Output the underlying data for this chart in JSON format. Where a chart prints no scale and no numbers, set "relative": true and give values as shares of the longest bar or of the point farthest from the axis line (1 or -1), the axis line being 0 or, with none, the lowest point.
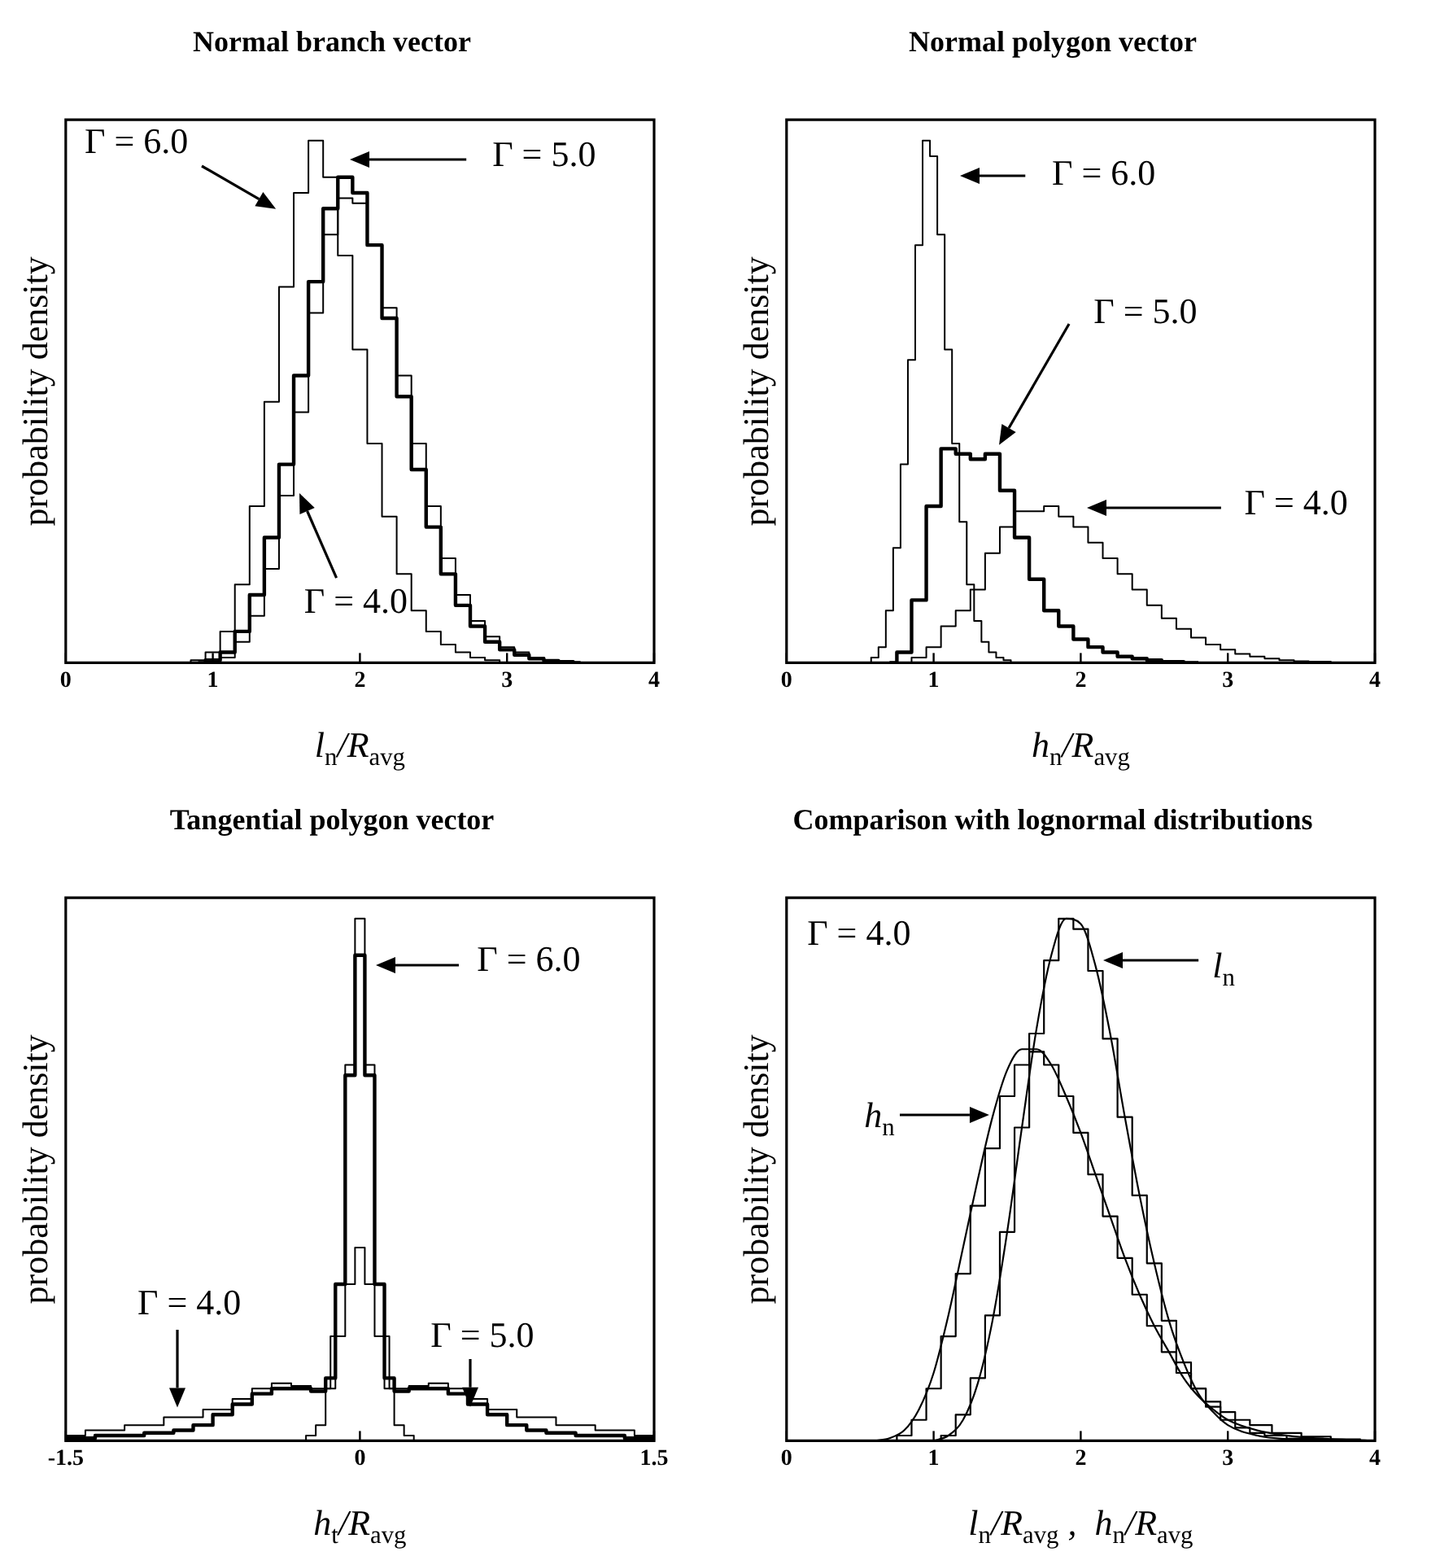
{
  "chart_data": [
    {
      "type": "step",
      "title": "Normal branch vector",
      "xlabel": "l$_{n}$/R$_{avg}$",
      "ylabel": "probability density",
      "relative": true,
      "xlim": [
        0,
        4
      ],
      "xticks": [
        0,
        1,
        2,
        3,
        4
      ],
      "legend": false,
      "grid": false,
      "series": [
        {
          "color": "#000000",
          "x": [
            0.8,
            0.9,
            1.0,
            1.1,
            1.2,
            1.3,
            1.4,
            1.5,
            1.6,
            1.7,
            1.8,
            1.9,
            2.0,
            2.1,
            2.2,
            2.3,
            2.4,
            2.5,
            2.6,
            2.7,
            2.8,
            2.9,
            3.0
          ],
          "values": [
            0,
            0.005,
            0.02,
            0.06,
            0.15,
            0.3,
            0.5,
            0.72,
            0.9,
            1.0,
            0.93,
            0.78,
            0.6,
            0.42,
            0.28,
            0.17,
            0.1,
            0.06,
            0.035,
            0.02,
            0.01,
            0.005,
            0
          ]
        },
        {
          "color": "#000000",
          "x": [
            0.9,
            1.0,
            1.1,
            1.2,
            1.3,
            1.4,
            1.5,
            1.6,
            1.7,
            1.8,
            1.9,
            2.0,
            2.1,
            2.2,
            2.3,
            2.4,
            2.5,
            2.6,
            2.7,
            2.8,
            2.9,
            3.0,
            3.1,
            3.2,
            3.3,
            3.4,
            3.5
          ],
          "values": [
            0,
            0.005,
            0.02,
            0.06,
            0.13,
            0.24,
            0.38,
            0.55,
            0.73,
            0.87,
            0.93,
            0.9,
            0.8,
            0.66,
            0.51,
            0.37,
            0.26,
            0.17,
            0.11,
            0.07,
            0.04,
            0.025,
            0.015,
            0.008,
            0.004,
            0.002,
            0
          ]
        },
        {
          "color": "#000000",
          "x": [
            1.0,
            1.1,
            1.2,
            1.3,
            1.4,
            1.5,
            1.6,
            1.7,
            1.8,
            1.9,
            2.0,
            2.1,
            2.2,
            2.3,
            2.4,
            2.5,
            2.6,
            2.7,
            2.8,
            2.9,
            3.0,
            3.1,
            3.2,
            3.3,
            3.4
          ],
          "values": [
            0,
            0.01,
            0.04,
            0.09,
            0.18,
            0.32,
            0.48,
            0.67,
            0.82,
            0.89,
            0.88,
            0.8,
            0.68,
            0.55,
            0.42,
            0.3,
            0.2,
            0.13,
            0.08,
            0.05,
            0.03,
            0.02,
            0.01,
            0.005,
            0
          ]
        }
      ],
      "annotations": [
        "Γ = 6.0",
        "Γ = 5.0",
        "Γ = 4.0"
      ]
    },
    {
      "type": "step",
      "title": "Normal polygon vector",
      "xlabel": "h$_{n}$/R$_{avg}$",
      "ylabel": "probability density",
      "relative": true,
      "xlim": [
        0,
        4
      ],
      "xticks": [
        0,
        1,
        2,
        3,
        4
      ],
      "legend": false,
      "grid": false,
      "series": [
        {
          "color": "#000000",
          "x": [
            0.55,
            0.6,
            0.65,
            0.7,
            0.75,
            0.8,
            0.85,
            0.9,
            0.95,
            1.0,
            1.05,
            1.1,
            1.15,
            1.2,
            1.25,
            1.3,
            1.35,
            1.4,
            1.45,
            1.5,
            1.55
          ],
          "values": [
            0,
            0.01,
            0.03,
            0.1,
            0.22,
            0.38,
            0.58,
            0.8,
            1.0,
            0.97,
            0.82,
            0.6,
            0.42,
            0.27,
            0.15,
            0.08,
            0.04,
            0.02,
            0.01,
            0.005,
            0
          ]
        },
        {
          "color": "#000000",
          "x": [
            0.7,
            0.8,
            0.9,
            1.0,
            1.1,
            1.2,
            1.3,
            1.4,
            1.5,
            1.6,
            1.7,
            1.8,
            1.9,
            2.0,
            2.1,
            2.2,
            2.3,
            2.4,
            2.5,
            2.6,
            2.8
          ],
          "values": [
            0,
            0.02,
            0.12,
            0.3,
            0.41,
            0.4,
            0.39,
            0.4,
            0.33,
            0.24,
            0.16,
            0.1,
            0.07,
            0.045,
            0.03,
            0.02,
            0.012,
            0.008,
            0.005,
            0.002,
            0
          ]
        },
        {
          "color": "#000000",
          "x": [
            0.8,
            0.9,
            1.0,
            1.1,
            1.2,
            1.3,
            1.4,
            1.5,
            1.6,
            1.7,
            1.8,
            1.9,
            2.0,
            2.1,
            2.2,
            2.3,
            2.4,
            2.5,
            2.6,
            2.7,
            2.8,
            2.9,
            3.0,
            3.1,
            3.2,
            3.3,
            3.4,
            3.5,
            3.6,
            3.8
          ],
          "values": [
            0,
            0.01,
            0.03,
            0.07,
            0.1,
            0.14,
            0.21,
            0.26,
            0.29,
            0.29,
            0.3,
            0.28,
            0.26,
            0.23,
            0.2,
            0.17,
            0.14,
            0.11,
            0.085,
            0.065,
            0.048,
            0.035,
            0.025,
            0.017,
            0.012,
            0.008,
            0.005,
            0.003,
            0.002,
            0
          ]
        }
      ],
      "annotations": [
        "Γ = 6.0",
        "Γ = 5.0",
        "Γ = 4.0"
      ]
    },
    {
      "type": "step",
      "title": "Tangential polygon vector",
      "xlabel": "h$_{t}$/R$_{avg}$",
      "ylabel": "probability density",
      "relative": true,
      "xlim": [
        -1.5,
        1.5
      ],
      "xticks": [
        -1.5,
        0,
        1.5
      ],
      "legend": false,
      "grid": false,
      "series": [
        {
          "color": "#000000",
          "x": [
            -0.3,
            -0.25,
            -0.2,
            -0.15,
            -0.1,
            -0.05,
            0,
            0.05,
            0.1,
            0.15,
            0.2,
            0.25,
            0.3
          ],
          "values": [
            0,
            0.01,
            0.03,
            0.1,
            0.3,
            0.72,
            1.0,
            0.72,
            0.3,
            0.1,
            0.03,
            0.01,
            0
          ]
        },
        {
          "color": "#000000",
          "x": [
            -1.5,
            -1.2,
            -1.0,
            -0.9,
            -0.8,
            -0.7,
            -0.6,
            -0.5,
            -0.4,
            -0.3,
            -0.2,
            -0.15,
            -0.1,
            -0.05,
            0,
            0.05,
            0.1,
            0.15,
            0.2,
            0.3,
            0.4,
            0.5,
            0.6,
            0.7,
            0.8,
            0.9,
            1.0,
            1.2,
            1.5
          ],
          "values": [
            0.005,
            0.01,
            0.015,
            0.02,
            0.03,
            0.05,
            0.07,
            0.09,
            0.1,
            0.1,
            0.095,
            0.12,
            0.3,
            0.7,
            0.93,
            0.7,
            0.3,
            0.12,
            0.095,
            0.1,
            0.1,
            0.09,
            0.07,
            0.05,
            0.03,
            0.02,
            0.015,
            0.01,
            0.005
          ]
        },
        {
          "color": "#000000",
          "x": [
            -1.5,
            -1.3,
            -1.1,
            -0.9,
            -0.7,
            -0.6,
            -0.5,
            -0.4,
            -0.3,
            -0.2,
            -0.1,
            -0.05,
            0,
            0.05,
            0.1,
            0.2,
            0.3,
            0.4,
            0.5,
            0.6,
            0.7,
            0.9,
            1.1,
            1.3,
            1.5
          ],
          "values": [
            0.01,
            0.02,
            0.03,
            0.045,
            0.06,
            0.08,
            0.1,
            0.11,
            0.105,
            0.1,
            0.2,
            0.3,
            0.37,
            0.3,
            0.2,
            0.1,
            0.105,
            0.11,
            0.1,
            0.08,
            0.06,
            0.045,
            0.03,
            0.02,
            0.01
          ]
        }
      ],
      "annotations": [
        "Γ = 6.0",
        "Γ = 4.0",
        "Γ = 5.0"
      ]
    },
    {
      "type": "step",
      "title": "Comparison with lognormal distributions",
      "xlabel": "l$_{n}$/R$_{avg}$ ,  h$_{n}$/R$_{avg}$",
      "ylabel": "probability density",
      "relative": true,
      "xlim": [
        0,
        4
      ],
      "xticks": [
        0,
        1,
        2,
        3,
        4
      ],
      "legend": false,
      "grid": false,
      "series": [
        {
          "type": "step",
          "color": "#000000",
          "x": [
            1.0,
            1.1,
            1.2,
            1.3,
            1.4,
            1.5,
            1.6,
            1.7,
            1.8,
            1.9,
            2.0,
            2.1,
            2.2,
            2.3,
            2.4,
            2.5,
            2.6,
            2.7,
            2.8,
            2.9,
            3.0,
            3.1,
            3.2,
            3.3,
            3.5,
            3.8
          ],
          "values": [
            0,
            0.01,
            0.05,
            0.12,
            0.24,
            0.4,
            0.6,
            0.78,
            0.92,
            1.0,
            0.98,
            0.9,
            0.77,
            0.62,
            0.47,
            0.34,
            0.23,
            0.15,
            0.1,
            0.065,
            0.04,
            0.025,
            0.015,
            0.01,
            0.004,
            0
          ]
        },
        {
          "type": "line",
          "color": "#000000",
          "x": [
            1.0,
            1.1,
            1.2,
            1.3,
            1.4,
            1.5,
            1.6,
            1.7,
            1.8,
            1.9,
            2.0,
            2.1,
            2.2,
            2.3,
            2.4,
            2.5,
            2.6,
            2.7,
            2.8,
            2.9,
            3.0,
            3.2,
            3.5,
            4.0
          ],
          "values": [
            0,
            0.01,
            0.04,
            0.11,
            0.23,
            0.4,
            0.6,
            0.79,
            0.93,
            1.0,
            0.99,
            0.91,
            0.78,
            0.62,
            0.47,
            0.34,
            0.23,
            0.15,
            0.09,
            0.055,
            0.03,
            0.01,
            0.002,
            0
          ]
        },
        {
          "type": "step",
          "color": "#000000",
          "x": [
            0.7,
            0.8,
            0.9,
            1.0,
            1.1,
            1.2,
            1.3,
            1.4,
            1.5,
            1.6,
            1.7,
            1.8,
            1.9,
            2.0,
            2.1,
            2.2,
            2.3,
            2.4,
            2.5,
            2.6,
            2.7,
            2.8,
            2.9,
            3.0,
            3.1,
            3.2,
            3.4,
            3.6,
            3.8,
            4.0
          ],
          "values": [
            0,
            0.01,
            0.04,
            0.1,
            0.2,
            0.32,
            0.45,
            0.56,
            0.66,
            0.72,
            0.745,
            0.72,
            0.66,
            0.59,
            0.51,
            0.43,
            0.35,
            0.28,
            0.22,
            0.17,
            0.13,
            0.1,
            0.075,
            0.055,
            0.04,
            0.03,
            0.015,
            0.008,
            0.003,
            0
          ]
        },
        {
          "type": "line",
          "color": "#000000",
          "x": [
            0.6,
            0.7,
            0.8,
            0.9,
            1.0,
            1.1,
            1.2,
            1.3,
            1.4,
            1.5,
            1.6,
            1.7,
            1.8,
            1.9,
            2.0,
            2.1,
            2.2,
            2.3,
            2.4,
            2.5,
            2.6,
            2.7,
            2.8,
            2.9,
            3.0,
            3.2,
            3.5,
            4.0
          ],
          "values": [
            0,
            0.005,
            0.02,
            0.06,
            0.13,
            0.24,
            0.37,
            0.5,
            0.62,
            0.71,
            0.75,
            0.75,
            0.72,
            0.66,
            0.59,
            0.51,
            0.43,
            0.35,
            0.28,
            0.22,
            0.17,
            0.12,
            0.085,
            0.06,
            0.04,
            0.02,
            0.007,
            0
          ]
        }
      ],
      "annotations": [
        "Γ = 4.0",
        "l$_{n}$",
        "h$_{n}$"
      ]
    }
  ]
}
